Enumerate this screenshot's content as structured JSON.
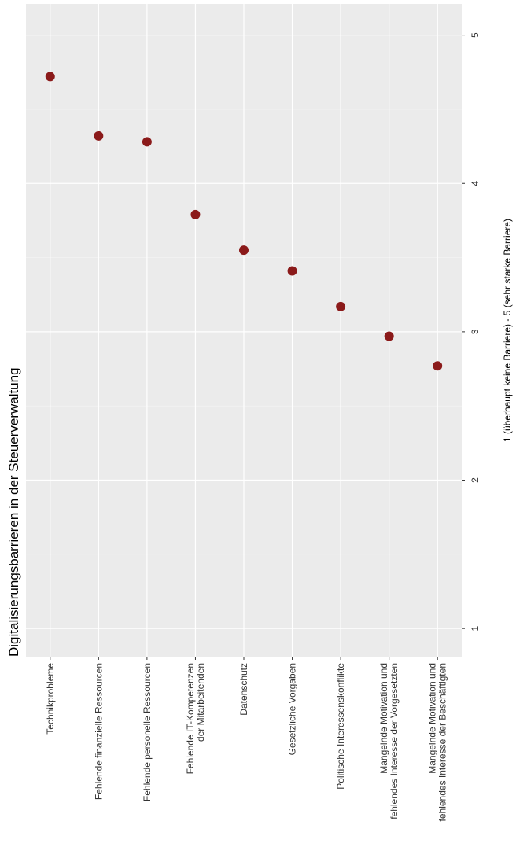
{
  "chart_data": {
    "type": "scatter",
    "title": "Digitalisierungsbarrieren in der Steuerverwaltung",
    "y_label": "1 (überhaupt keine Barriere) - 5 (sehr starke Barriere)",
    "categories": [
      "Technikprobleme",
      "Fehlende finanzielle Ressourcen",
      "Fehlende personelle Ressourcen",
      "Fehlende IT-Kompetenzen\nder Mitarbeitenden",
      "Datenschutz",
      "Gesetzliche Vorgaben",
      "Politische Interessenskonflikte",
      "Mangelnde Motivation und\nfehlendes Interesse der Vorgesetzten",
      "Mangelnde Motivation und\nfehlendes Interesse der Beschäftigten"
    ],
    "values": [
      4.72,
      4.32,
      4.28,
      3.79,
      3.55,
      3.41,
      3.17,
      2.97,
      2.77
    ],
    "color": "#8b1a1a",
    "ylim": [
      0.81,
      5.21
    ],
    "yticks": [
      1,
      2,
      3,
      4,
      5
    ],
    "grid": true
  }
}
